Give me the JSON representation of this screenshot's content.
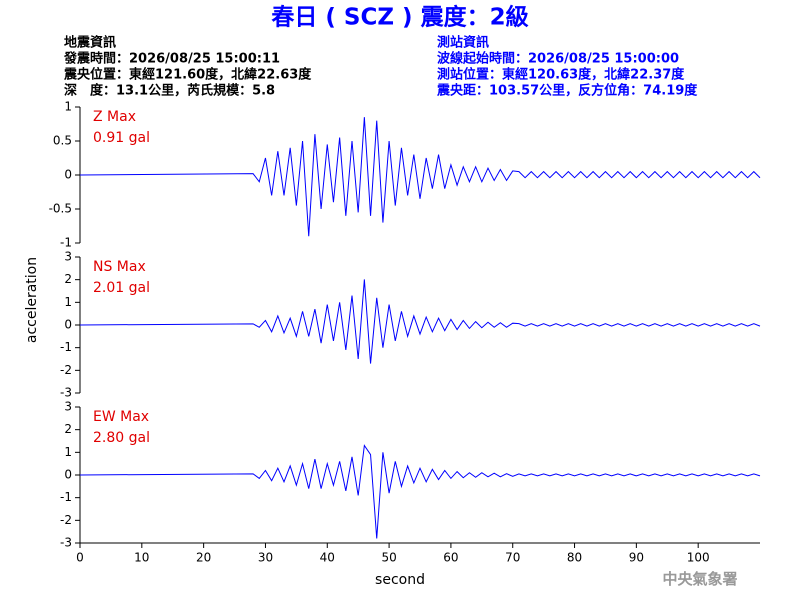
{
  "header": {
    "title": "春日 ( SCZ ) 震度：2級",
    "left": [
      "地震資訊",
      "發震時間：2026/08/25 15:00:11",
      "震央位置：東經121.60度，北緯22.63度",
      "深　度：13.1公里，芮氏規模：5.8"
    ],
    "right": [
      "測站資訊",
      "波線起始時間：2026/08/25 15:00:00",
      "測站位置：東經120.63度，北緯22.37度",
      "震央距：103.57公里，反方位角：74.19度"
    ]
  },
  "footer": "中央氣象署",
  "chart_data": [
    {
      "type": "line",
      "annotations": [
        "Z Max",
        "0.91 gal"
      ],
      "color": "#0000ff",
      "xlim": [
        0,
        110
      ],
      "ylim": [
        -1,
        1
      ],
      "yticks": [
        1,
        0.5,
        0,
        -0.5,
        -1
      ],
      "x": [
        0,
        28,
        29,
        30,
        31,
        32,
        33,
        34,
        35,
        36,
        37,
        38,
        39,
        40,
        41,
        42,
        43,
        44,
        45,
        46,
        47,
        48,
        49,
        50,
        51,
        52,
        53,
        54,
        55,
        56,
        57,
        58,
        59,
        60,
        61,
        62,
        63,
        64,
        65,
        66,
        67,
        68,
        69,
        70,
        71,
        72,
        73,
        74,
        75,
        76,
        77,
        78,
        79,
        80,
        81,
        82,
        83,
        84,
        85,
        86,
        87,
        88,
        89,
        90,
        91,
        92,
        93,
        94,
        95,
        96,
        97,
        98,
        99,
        100,
        101,
        102,
        103,
        104,
        105,
        106,
        107,
        108,
        109,
        110
      ],
      "values": [
        0,
        0.02,
        -0.1,
        0.25,
        -0.3,
        0.35,
        -0.3,
        0.4,
        -0.45,
        0.5,
        -0.9,
        0.6,
        -0.5,
        0.45,
        -0.4,
        0.55,
        -0.6,
        0.5,
        -0.55,
        0.85,
        -0.6,
        0.8,
        -0.7,
        0.5,
        -0.45,
        0.4,
        -0.3,
        0.3,
        -0.35,
        0.25,
        -0.2,
        0.3,
        -0.2,
        0.15,
        -0.15,
        0.12,
        -0.1,
        0.12,
        -0.1,
        0.1,
        -0.08,
        0.08,
        -0.08,
        0.06,
        0.05,
        -0.04,
        0.05,
        -0.04,
        0.05,
        -0.04,
        0.05,
        -0.04,
        0.05,
        -0.04,
        0.05,
        -0.04,
        0.05,
        -0.04,
        0.05,
        -0.04,
        0.05,
        -0.04,
        0.05,
        -0.04,
        0.05,
        -0.04,
        0.05,
        -0.04,
        0.05,
        -0.04,
        0.05,
        -0.04,
        0.05,
        -0.04,
        0.05,
        -0.04,
        0.05,
        -0.04,
        0.05,
        -0.04,
        0.05,
        -0.04,
        0.05,
        -0.04
      ]
    },
    {
      "type": "line",
      "annotations": [
        "NS Max",
        "2.01 gal"
      ],
      "ylabel": "acceleration",
      "color": "#0000ff",
      "xlim": [
        0,
        110
      ],
      "ylim": [
        -3,
        3
      ],
      "yticks": [
        3,
        2,
        1,
        0,
        -1,
        -2,
        -3
      ],
      "x": [
        0,
        28,
        29,
        30,
        31,
        32,
        33,
        34,
        35,
        36,
        37,
        38,
        39,
        40,
        41,
        42,
        43,
        44,
        45,
        46,
        47,
        48,
        49,
        50,
        51,
        52,
        53,
        54,
        55,
        56,
        57,
        58,
        59,
        60,
        61,
        62,
        63,
        64,
        65,
        66,
        67,
        68,
        69,
        70,
        71,
        72,
        73,
        74,
        75,
        76,
        77,
        78,
        79,
        80,
        81,
        82,
        83,
        84,
        85,
        86,
        87,
        88,
        89,
        90,
        91,
        92,
        93,
        94,
        95,
        96,
        97,
        98,
        99,
        100,
        101,
        102,
        103,
        104,
        105,
        106,
        107,
        108,
        109,
        110
      ],
      "values": [
        0,
        0.05,
        -0.1,
        0.2,
        -0.3,
        0.4,
        -0.35,
        0.3,
        -0.5,
        0.6,
        -0.5,
        0.7,
        -0.8,
        0.9,
        -0.7,
        1.0,
        -1.1,
        1.3,
        -1.5,
        2.01,
        -1.7,
        1.2,
        -1.0,
        0.9,
        -0.7,
        0.6,
        -0.5,
        0.4,
        -0.4,
        0.35,
        -0.3,
        0.3,
        -0.25,
        0.25,
        -0.2,
        0.2,
        -0.15,
        0.15,
        -0.12,
        0.12,
        -0.1,
        0.1,
        -0.1,
        0.08,
        0.06,
        -0.05,
        0.06,
        -0.05,
        0.06,
        -0.05,
        0.06,
        -0.05,
        0.06,
        -0.05,
        0.06,
        -0.05,
        0.06,
        -0.05,
        0.06,
        -0.05,
        0.06,
        -0.05,
        0.06,
        -0.05,
        0.06,
        -0.05,
        0.06,
        -0.05,
        0.06,
        -0.05,
        0.06,
        -0.05,
        0.06,
        -0.05,
        0.06,
        -0.05,
        0.06,
        -0.05,
        0.06,
        -0.05,
        0.06,
        -0.05,
        0.06,
        -0.05
      ]
    },
    {
      "type": "line",
      "annotations": [
        "EW Max",
        "2.80 gal"
      ],
      "xlabel": "second",
      "color": "#0000ff",
      "xlim": [
        0,
        110
      ],
      "ylim": [
        -3,
        3
      ],
      "yticks": [
        3,
        2,
        1,
        0,
        -1,
        -2,
        -3
      ],
      "xticks": [
        0,
        10,
        20,
        30,
        40,
        50,
        60,
        70,
        80,
        90,
        100
      ],
      "x": [
        0,
        28,
        29,
        30,
        31,
        32,
        33,
        34,
        35,
        36,
        37,
        38,
        39,
        40,
        41,
        42,
        43,
        44,
        45,
        46,
        47,
        48,
        49,
        50,
        51,
        52,
        53,
        54,
        55,
        56,
        57,
        58,
        59,
        60,
        61,
        62,
        63,
        64,
        65,
        66,
        67,
        68,
        69,
        70,
        71,
        72,
        73,
        74,
        75,
        76,
        77,
        78,
        79,
        80,
        81,
        82,
        83,
        84,
        85,
        86,
        87,
        88,
        89,
        90,
        91,
        92,
        93,
        94,
        95,
        96,
        97,
        98,
        99,
        100,
        101,
        102,
        103,
        104,
        105,
        106,
        107,
        108,
        109,
        110
      ],
      "values": [
        0,
        0.05,
        -0.15,
        0.2,
        -0.25,
        0.3,
        -0.3,
        0.4,
        -0.45,
        0.5,
        -0.6,
        0.7,
        -0.6,
        0.5,
        -0.45,
        0.6,
        -0.7,
        0.8,
        -0.9,
        1.3,
        0.9,
        -2.8,
        1.0,
        -0.8,
        0.6,
        -0.5,
        0.4,
        -0.35,
        0.3,
        -0.3,
        0.25,
        -0.2,
        0.2,
        -0.15,
        0.15,
        -0.12,
        0.1,
        -0.1,
        0.1,
        -0.08,
        0.08,
        -0.08,
        0.06,
        -0.06,
        0.05,
        -0.04,
        0.05,
        -0.04,
        0.05,
        -0.04,
        0.05,
        -0.04,
        0.05,
        -0.04,
        0.05,
        -0.04,
        0.05,
        -0.04,
        0.05,
        -0.04,
        0.05,
        -0.04,
        0.05,
        -0.04,
        0.05,
        -0.04,
        0.05,
        -0.04,
        0.05,
        -0.04,
        0.05,
        -0.04,
        0.05,
        -0.04,
        0.05,
        -0.04,
        0.05,
        -0.04,
        0.05,
        -0.04,
        0.05,
        -0.04,
        0.05,
        -0.04
      ]
    }
  ]
}
